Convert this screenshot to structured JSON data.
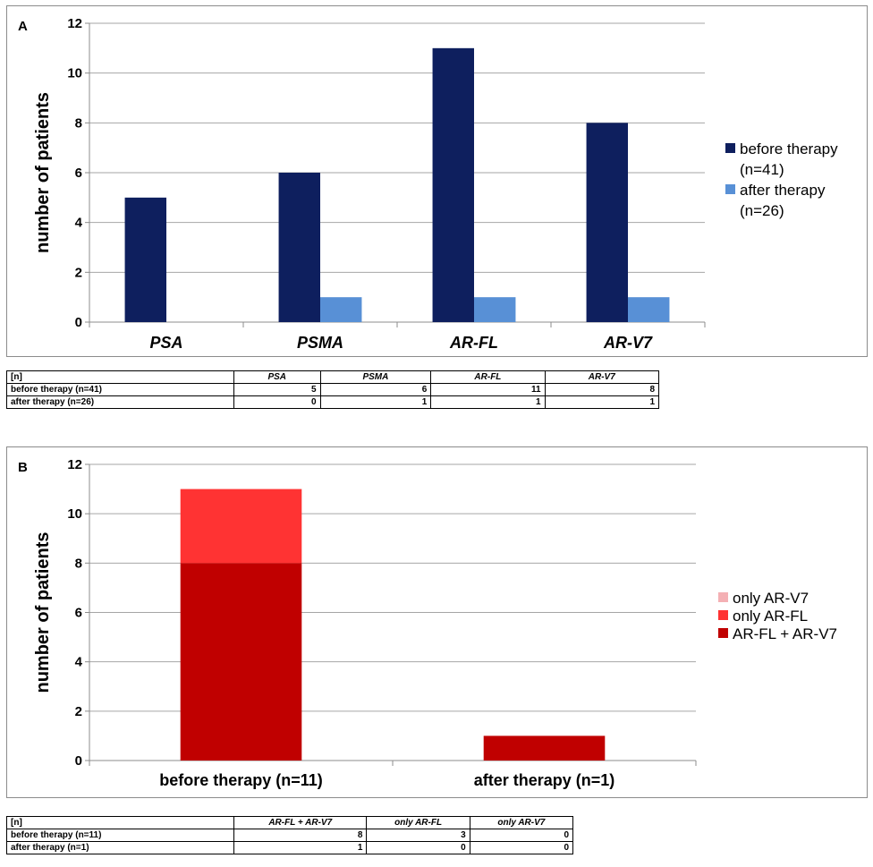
{
  "chart_data": [
    {
      "panel_label": "A",
      "type": "bar",
      "ylabel": "number of patients",
      "ylim": [
        0,
        12
      ],
      "yticks": [
        "0",
        "2",
        "4",
        "6",
        "8",
        "10",
        "12"
      ],
      "categories": [
        "PSA",
        "PSMA",
        "AR-FL",
        "AR-V7"
      ],
      "series": [
        {
          "name": "before therapy (n=41)",
          "legend_lines": [
            "before therapy",
            "(n=41)"
          ],
          "color": "#0e1f5e",
          "values": [
            5,
            6,
            11,
            8
          ]
        },
        {
          "name": "after therapy (n=26)",
          "legend_lines": [
            "after therapy",
            "(n=26)"
          ],
          "color": "#5890d6",
          "values": [
            0,
            1,
            1,
            1
          ]
        }
      ],
      "grid": true,
      "legend": "right",
      "table": {
        "corner": "[n]",
        "header": [
          "PSA",
          "PSMA",
          "AR-FL",
          "AR-V7"
        ],
        "rows": [
          {
            "label": "before therapy (n=41)",
            "cells": [
              "5",
              "6",
              "11",
              "8"
            ]
          },
          {
            "label": "after therapy (n=26)",
            "cells": [
              "0",
              "1",
              "1",
              "1"
            ]
          }
        ]
      }
    },
    {
      "panel_label": "B",
      "type": "bar",
      "stacked": true,
      "ylabel": "number of patients",
      "ylim": [
        0,
        12
      ],
      "yticks": [
        "0",
        "2",
        "4",
        "6",
        "8",
        "10",
        "12"
      ],
      "categories": [
        "before therapy (n=11)",
        "after therapy (n=1)"
      ],
      "series": [
        {
          "name": "AR-FL + AR-V7",
          "color": "#c00000",
          "values": [
            8,
            1
          ]
        },
        {
          "name": "only AR-FL",
          "color": "#ff3333",
          "values": [
            3,
            0
          ]
        },
        {
          "name": "only AR-V7",
          "color": "#f4b0b4",
          "values": [
            0,
            0
          ]
        }
      ],
      "grid": true,
      "legend": "right",
      "table": {
        "corner": "[n]",
        "header": [
          "AR-FL + AR-V7",
          "only AR-FL",
          "only AR-V7"
        ],
        "rows": [
          {
            "label": "before therapy (n=11)",
            "cells": [
              "8",
              "3",
              "0"
            ]
          },
          {
            "label": "after therapy (n=1)",
            "cells": [
              "1",
              "0",
              "0"
            ]
          }
        ]
      }
    }
  ]
}
